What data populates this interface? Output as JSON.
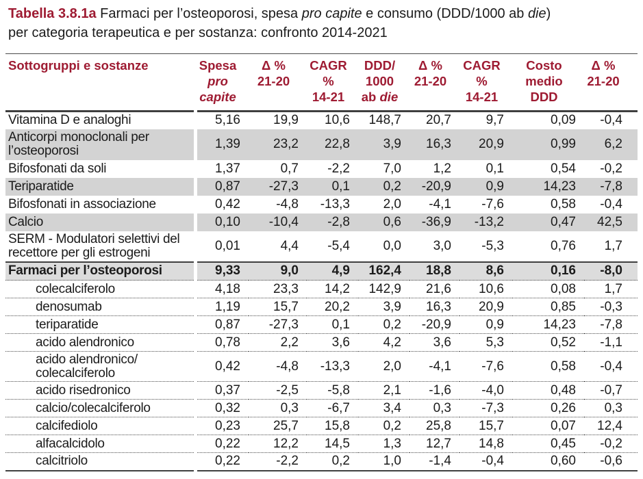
{
  "title": {
    "label": "Tabella 3.8.1a",
    "line1_a": "Farmaci per l’osteoporosi, spesa",
    "line1_italic1": "pro capite",
    "line1_b": "e consumo (DDD/1000 ab",
    "line1_italic2": "die",
    "line1_c": ")",
    "line2": "per categoria terapeutica e per sostanza: confronto 2014-2021"
  },
  "colors": {
    "accent_maroon": "#9e1b32",
    "shaded_row": "#d3d3d3",
    "total_row": "#dcdcdc",
    "rule_dark": "#3f3f3f"
  },
  "table": {
    "columns": [
      {
        "key": "sottogruppi",
        "lines": [
          "Sottogruppi e sostanze"
        ]
      },
      {
        "key": "spesa_pro_capite",
        "line1": "Spesa",
        "line2_italic": "pro capite"
      },
      {
        "key": "delta_21_20_spesa",
        "lines": [
          "Δ %",
          "21-20"
        ]
      },
      {
        "key": "cagr_14_21_spesa",
        "lines": [
          "CAGR %",
          "14-21"
        ]
      },
      {
        "key": "ddd_1000_ab_die",
        "line1": "DDD/",
        "line2": "1000",
        "line3_regular": "ab",
        "line3_italic": "die"
      },
      {
        "key": "delta_21_20_ddd",
        "lines": [
          "Δ %",
          "21-20"
        ]
      },
      {
        "key": "cagr_14_21_ddd",
        "lines": [
          "CAGR %",
          "14-21"
        ]
      },
      {
        "key": "costo_medio_ddd",
        "lines": [
          "Costo",
          "medio",
          "DDD"
        ]
      },
      {
        "key": "delta_21_20_costo",
        "lines": [
          "Δ %",
          "21-20"
        ]
      }
    ],
    "rows": [
      {
        "style": "cat",
        "shaded": false,
        "name": [
          "Vitamina D e analoghi"
        ],
        "values": [
          "5,16",
          "19,9",
          "10,6",
          "148,7",
          "20,7",
          "9,7",
          "0,09",
          "-0,4"
        ]
      },
      {
        "style": "cat",
        "shaded": true,
        "name": [
          "Anticorpi monoclonali per",
          "l’osteoporosi"
        ],
        "values": [
          "1,39",
          "23,2",
          "22,8",
          "3,9",
          "16,3",
          "20,9",
          "0,99",
          "6,2"
        ]
      },
      {
        "style": "cat",
        "shaded": false,
        "name": [
          "Bifosfonati da soli"
        ],
        "values": [
          "1,37",
          "0,7",
          "-2,2",
          "7,0",
          "1,2",
          "0,1",
          "0,54",
          "-0,2"
        ]
      },
      {
        "style": "cat",
        "shaded": true,
        "name": [
          "Teriparatide"
        ],
        "values": [
          "0,87",
          "-27,3",
          "0,1",
          "0,2",
          "-20,9",
          "0,9",
          "14,23",
          "-7,8"
        ]
      },
      {
        "style": "cat",
        "shaded": false,
        "name": [
          "Bifosfonati in associazione"
        ],
        "values": [
          "0,42",
          "-4,8",
          "-13,3",
          "2,0",
          "-4,1",
          "-7,6",
          "0,58",
          "-0,4"
        ]
      },
      {
        "style": "cat",
        "shaded": true,
        "name": [
          "Calcio"
        ],
        "values": [
          "0,10",
          "-10,4",
          "-2,8",
          "0,6",
          "-36,9",
          "-13,2",
          "0,47",
          "42,5"
        ]
      },
      {
        "style": "cat",
        "shaded": false,
        "name": [
          "SERM - Modulatori selettivi del",
          "recettore per gli estrogeni"
        ],
        "values": [
          "0,01",
          "4,4",
          "-5,4",
          "0,0",
          "3,0",
          "-5,3",
          "0,76",
          "1,7"
        ]
      },
      {
        "style": "total",
        "shaded": false,
        "name": [
          "Farmaci per l’osteoporosi"
        ],
        "values": [
          "9,33",
          "9,0",
          "4,9",
          "162,4",
          "18,8",
          "8,6",
          "0,16",
          "-8,0"
        ]
      },
      {
        "style": "sub",
        "shaded": false,
        "name": [
          "colecalciferolo"
        ],
        "values": [
          "4,18",
          "23,3",
          "14,2",
          "142,9",
          "21,6",
          "10,6",
          "0,08",
          "1,7"
        ]
      },
      {
        "style": "sub",
        "shaded": false,
        "name": [
          "denosumab"
        ],
        "values": [
          "1,19",
          "15,7",
          "20,2",
          "3,9",
          "16,3",
          "20,9",
          "0,85",
          "-0,3"
        ]
      },
      {
        "style": "sub",
        "shaded": false,
        "name": [
          "teriparatide"
        ],
        "values": [
          "0,87",
          "-27,3",
          "0,1",
          "0,2",
          "-20,9",
          "0,9",
          "14,23",
          "-7,8"
        ]
      },
      {
        "style": "sub",
        "shaded": false,
        "name": [
          "acido alendronico"
        ],
        "values": [
          "0,78",
          "2,2",
          "3,6",
          "4,2",
          "3,6",
          "5,3",
          "0,52",
          "-1,1"
        ]
      },
      {
        "style": "sub",
        "shaded": false,
        "name": [
          "acido alendronico/",
          "colecalciferolo"
        ],
        "values": [
          "0,42",
          "-4,8",
          "-13,3",
          "2,0",
          "-4,1",
          "-7,6",
          "0,58",
          "-0,4"
        ]
      },
      {
        "style": "sub",
        "shaded": false,
        "name": [
          "acido risedronico"
        ],
        "values": [
          "0,37",
          "-2,5",
          "-5,8",
          "2,1",
          "-1,6",
          "-4,0",
          "0,48",
          "-0,7"
        ]
      },
      {
        "style": "sub",
        "shaded": false,
        "name": [
          "calcio/colecalciferolo"
        ],
        "values": [
          "0,32",
          "0,3",
          "-6,7",
          "3,4",
          "0,3",
          "-7,3",
          "0,26",
          "0,3"
        ]
      },
      {
        "style": "sub",
        "shaded": false,
        "name": [
          "calcifediolo"
        ],
        "values": [
          "0,23",
          "25,7",
          "15,8",
          "0,2",
          "25,8",
          "15,7",
          "0,07",
          "12,4"
        ]
      },
      {
        "style": "sub",
        "shaded": false,
        "name": [
          "alfacalcidolo"
        ],
        "values": [
          "0,22",
          "12,2",
          "14,5",
          "1,3",
          "12,7",
          "14,8",
          "0,45",
          "-0,2"
        ]
      },
      {
        "style": "sub",
        "shaded": false,
        "name": [
          "calcitriolo"
        ],
        "values": [
          "0,22",
          "-2,2",
          "0,2",
          "1,0",
          "-1,4",
          "-0,4",
          "0,60",
          "-0,6"
        ]
      }
    ]
  }
}
